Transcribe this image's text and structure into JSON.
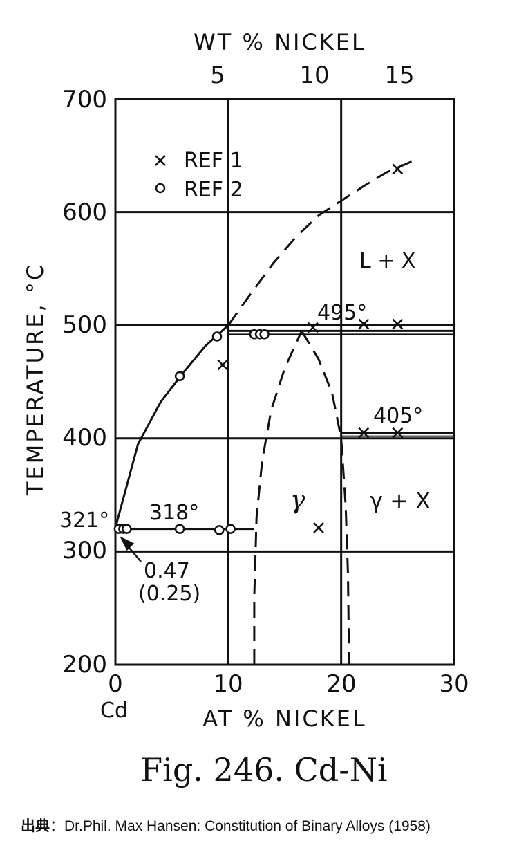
{
  "chart_data": {
    "type": "phase-diagram",
    "title": "Fig. 246. Cd-Ni",
    "xlabel": "AT % NICKEL",
    "xlabel_top": "WT % NICKEL",
    "ylabel": "TEMPERATURE, °C",
    "xlim": [
      0,
      30
    ],
    "ylim": [
      200,
      700
    ],
    "x_ticks": [
      "0",
      "10",
      "20",
      "30"
    ],
    "x_ticks_top": [
      "5",
      "10",
      "15"
    ],
    "y_ticks": [
      "200",
      "300",
      "400",
      "500",
      "600",
      "700"
    ],
    "x_origin_label": "Cd",
    "grid": true,
    "legend": [
      {
        "marker": "x",
        "label": "REF 1"
      },
      {
        "marker": "o",
        "label": "REF 2"
      }
    ],
    "annotations": {
      "cd_melting": "321°",
      "eutectic": "318°",
      "peritectic_upper": "495°",
      "peritectic_lower": "405°",
      "eutectic_comp_at": "0.47",
      "eutectic_comp_wt": "(0.25)",
      "phase_liquid_x": "L + X",
      "phase_gamma": "γ",
      "phase_gamma_x": "γ + X"
    },
    "series": [
      {
        "name": "REF 1",
        "marker": "x",
        "points": [
          [
            9.5,
            465
          ],
          [
            17.5,
            498
          ],
          [
            22,
            501
          ],
          [
            25,
            501
          ],
          [
            25,
            638
          ],
          [
            18,
            321
          ],
          [
            22,
            405
          ],
          [
            25,
            405
          ]
        ]
      },
      {
        "name": "REF 2",
        "marker": "o",
        "points": [
          [
            0.3,
            320
          ],
          [
            0.7,
            320
          ],
          [
            1,
            320
          ],
          [
            5.7,
            455
          ],
          [
            9,
            490
          ],
          [
            5.7,
            320
          ],
          [
            9.2,
            319
          ],
          [
            10.2,
            320
          ],
          [
            12.3,
            492
          ],
          [
            12.8,
            492
          ],
          [
            13.2,
            492
          ]
        ]
      }
    ],
    "liquidus_solid": [
      [
        0,
        321
      ],
      [
        2,
        395
      ],
      [
        4,
        432
      ],
      [
        6,
        458
      ],
      [
        8,
        482
      ],
      [
        10,
        500
      ]
    ],
    "liquidus_dashed": [
      [
        10,
        500
      ],
      [
        12,
        528
      ],
      [
        14,
        555
      ],
      [
        16,
        578
      ],
      [
        18,
        597
      ],
      [
        20,
        610
      ],
      [
        22,
        623
      ],
      [
        24,
        635
      ],
      [
        26.3,
        645
      ]
    ],
    "gamma_left_boundary": [
      [
        12.3,
        200
      ],
      [
        12.3,
        260
      ],
      [
        12.5,
        330
      ],
      [
        13,
        380
      ],
      [
        13.8,
        425
      ],
      [
        15,
        462
      ],
      [
        16.5,
        495
      ]
    ],
    "gamma_right_boundary": [
      [
        16.5,
        495
      ],
      [
        18,
        470
      ],
      [
        19.2,
        440
      ],
      [
        20,
        400
      ],
      [
        20.4,
        340
      ],
      [
        20.6,
        280
      ],
      [
        20.7,
        200
      ]
    ],
    "horizontals": [
      {
        "style": "solid",
        "y": 495,
        "x": [
          10,
          30
        ]
      },
      {
        "style": "solid",
        "y": 405,
        "x": [
          20,
          30
        ]
      },
      {
        "style": "solid",
        "y": 320,
        "x": [
          0,
          12.3
        ]
      }
    ]
  },
  "caption": "Fig. 246. Cd-Ni",
  "source": {
    "label": "出典",
    "separator": "：",
    "text": "Dr.Phil. Max Hansen: Constitution of Binary Alloys (1958)"
  }
}
